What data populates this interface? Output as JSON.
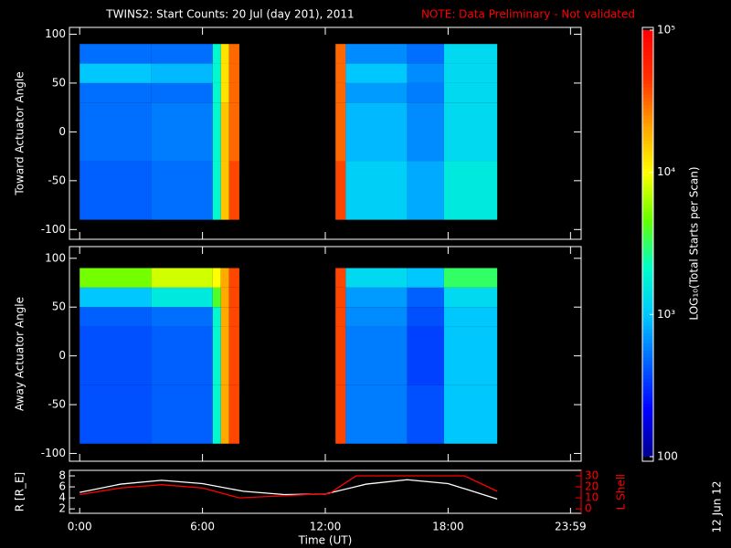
{
  "chart_data": [
    {
      "type": "heatmap",
      "title": "TWINS2: Start Counts: 20 Jul (day 201), 2011",
      "note": "NOTE: Data Preliminary - Not validated",
      "ylabel": "Toward Actuator Angle",
      "x_edges": [
        0,
        3.5,
        6.5,
        6.9,
        7.3,
        7.8,
        12.5,
        13.0,
        16.0,
        17.8,
        20.4
      ],
      "y_edges": [
        -90,
        -30,
        30,
        50,
        70,
        90
      ],
      "values": [
        [
          2.65,
          2.7,
          3.3,
          4.2,
          4.6,
          null,
          4.6,
          3.05,
          2.9,
          3.2
        ],
        [
          2.7,
          2.75,
          3.3,
          4.2,
          4.5,
          null,
          4.5,
          2.95,
          2.8,
          3.1
        ],
        [
          2.7,
          2.7,
          3.3,
          4.1,
          4.5,
          null,
          4.5,
          2.85,
          2.75,
          3.1
        ],
        [
          3.0,
          2.95,
          3.3,
          4.1,
          4.5,
          null,
          4.5,
          3.0,
          2.8,
          3.1
        ],
        [
          2.7,
          2.7,
          3.3,
          4.1,
          4.5,
          null,
          4.5,
          2.8,
          2.7,
          3.1
        ]
      ],
      "xlim": [
        -0.5,
        24.5
      ],
      "ylim": [
        -110,
        107
      ],
      "yticks": [
        -100,
        -50,
        0,
        50,
        100
      ]
    },
    {
      "type": "heatmap",
      "ylabel": "Away Actuator Angle",
      "x_edges": [
        0,
        3.5,
        6.5,
        6.9,
        7.3,
        7.8,
        12.5,
        13.0,
        16.0,
        17.8,
        20.4
      ],
      "y_edges": [
        -90,
        -30,
        30,
        50,
        70,
        90
      ],
      "values": [
        [
          2.6,
          2.65,
          3.3,
          4.3,
          4.6,
          null,
          4.6,
          2.75,
          2.6,
          3.0
        ],
        [
          2.6,
          2.65,
          3.3,
          4.3,
          4.6,
          null,
          4.6,
          2.75,
          2.55,
          3.0
        ],
        [
          2.65,
          2.7,
          3.3,
          4.3,
          4.6,
          null,
          4.6,
          2.8,
          2.6,
          3.0
        ],
        [
          3.0,
          3.2,
          3.6,
          4.3,
          4.6,
          null,
          4.6,
          2.85,
          2.65,
          3.1
        ],
        [
          3.7,
          3.9,
          4.0,
          4.3,
          4.6,
          null,
          4.6,
          3.1,
          3.0,
          3.5
        ]
      ],
      "xlim": [
        -0.5,
        24.5
      ],
      "ylim": [
        -108,
        112
      ],
      "yticks": [
        -100,
        -50,
        0,
        50,
        100
      ]
    },
    {
      "type": "line",
      "ylabel": "R [R_E]",
      "y2label": "L Shell",
      "xlabel": "Time (UT)",
      "xlim": [
        -0.5,
        24.5
      ],
      "xticks": [
        {
          "value": 0,
          "label": "0:00"
        },
        {
          "value": 6,
          "label": "6:00"
        },
        {
          "value": 12,
          "label": "12:00"
        },
        {
          "value": 18,
          "label": "18:00"
        },
        {
          "value": 23.98,
          "label": "23:59"
        }
      ],
      "ylim": [
        1.2,
        9
      ],
      "yticks": [
        2,
        4,
        6,
        8
      ],
      "y2lim": [
        -4,
        35
      ],
      "y2ticks": [
        0,
        10,
        20,
        30
      ],
      "y2color": "#ff0000",
      "series": [
        {
          "color": "#ffffff",
          "x": [
            0,
            2,
            4,
            6,
            8,
            10,
            12,
            14,
            16,
            18,
            20.4
          ],
          "values": [
            5.0,
            6.5,
            7.2,
            6.6,
            5.2,
            4.6,
            4.7,
            6.5,
            7.3,
            6.6,
            3.8
          ]
        },
        {
          "color": "#ff0000",
          "axis": "y2",
          "x": [
            0,
            2,
            4,
            6,
            7.8,
            10,
            12.2,
            13.5,
            18.8,
            20.4
          ],
          "values": [
            13,
            19,
            22,
            19,
            10,
            12,
            14,
            30,
            30,
            16
          ]
        }
      ]
    },
    {
      "type": "colorbar",
      "label": "LOG₁₀(Total Starts per Scan)",
      "clim": [
        2,
        5
      ],
      "ticks": [
        {
          "value": 2,
          "label": "100"
        },
        {
          "value": 3,
          "label": "10³"
        },
        {
          "value": 4,
          "label": "10⁴"
        },
        {
          "value": 5,
          "label": "10⁵"
        }
      ],
      "colors": [
        "#00008c",
        "#0000ff",
        "#0064ff",
        "#00c8ff",
        "#00ffc8",
        "#64ff00",
        "#ffff00",
        "#ffa000",
        "#ff3000",
        "#ff0000"
      ]
    }
  ],
  "stamp": "12 Jun 12"
}
